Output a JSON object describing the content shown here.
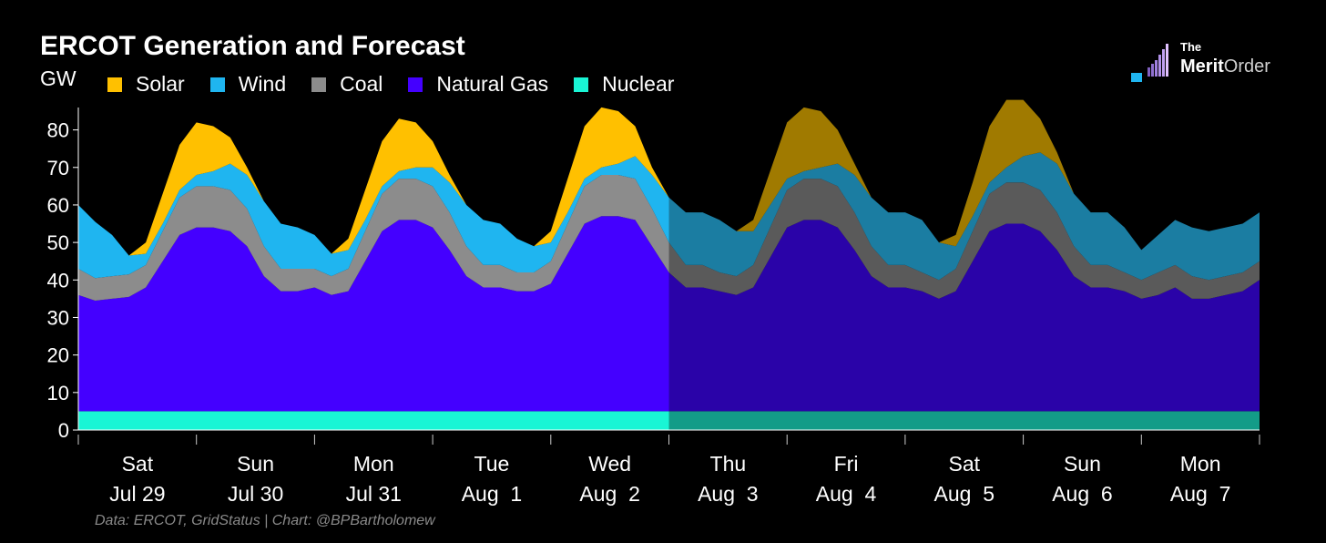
{
  "title": "ERCOT Generation and Forecast",
  "ylabel": "GW",
  "source": "Data: ERCOT, GridStatus | Chart: @BPBartholomew",
  "logo": {
    "line1": "The",
    "line2a": "Merit",
    "line2b": "Order"
  },
  "colors": {
    "solar": "#FFC000",
    "wind": "#1FB5F0",
    "coal": "#8C8C8C",
    "gas": "#4400FF",
    "nuclear": "#19F5D5",
    "other": "#C8103C",
    "forecast_solar": "#A07A00",
    "forecast_wind": "#1B7DA2",
    "forecast_coal": "#5A5A5A",
    "forecast_gas": "#2A03A8",
    "forecast_nuclear": "#139C88",
    "forecast_overlay": "#444444",
    "background": "#000000"
  },
  "legend": [
    {
      "label": "Solar",
      "color": "#FFC000"
    },
    {
      "label": "Wind",
      "color": "#1FB5F0"
    },
    {
      "label": "Coal",
      "color": "#8C8C8C"
    },
    {
      "label": "Natural Gas",
      "color": "#4400FF"
    },
    {
      "label": "Nuclear",
      "color": "#19F5D5"
    }
  ],
  "chart_data": {
    "type": "area",
    "stacked": true,
    "ylim": [
      0,
      85
    ],
    "yticks": [
      0,
      10,
      20,
      30,
      40,
      50,
      60,
      70,
      80
    ],
    "x_unit": "days from Sat Jul 29 00:00",
    "xlim": [
      0,
      10
    ],
    "forecast_start": 5,
    "day_labels": [
      {
        "day": "Sat",
        "date": "Jul 29"
      },
      {
        "day": "Sun",
        "date": "Jul 30"
      },
      {
        "day": "Mon",
        "date": "Jul 31"
      },
      {
        "day": "Tue",
        "date": "Aug  1"
      },
      {
        "day": "Wed",
        "date": "Aug  2"
      },
      {
        "day": "Thu",
        "date": "Aug  3"
      },
      {
        "day": "Fri",
        "date": "Aug  4"
      },
      {
        "day": "Sat",
        "date": "Aug  5"
      },
      {
        "day": "Sun",
        "date": "Aug  6"
      },
      {
        "day": "Mon",
        "date": "Aug  7"
      }
    ],
    "series": [
      {
        "name": "Nuclear",
        "color": "#19F5D5",
        "values": [
          5,
          5,
          5,
          5,
          5,
          5,
          5,
          5,
          5,
          5,
          5,
          5,
          5,
          5,
          5,
          5,
          5,
          5,
          5,
          5,
          5,
          5,
          5,
          5,
          5,
          5,
          5,
          5,
          5,
          5,
          5,
          5,
          5,
          5,
          5,
          5,
          5,
          5,
          5,
          5,
          5,
          5,
          5,
          5,
          5,
          5,
          5,
          5,
          5,
          5,
          5,
          5,
          5,
          5,
          5,
          5,
          5,
          5,
          5,
          5,
          5,
          5,
          5,
          5,
          5,
          5,
          5,
          5,
          5,
          5,
          5
        ]
      },
      {
        "name": "Natural Gas",
        "color": "#4400FF",
        "values": [
          31,
          29.5,
          30,
          30.5,
          33,
          40,
          47,
          49,
          49,
          48,
          44,
          36,
          32,
          32,
          33,
          31,
          32,
          40,
          48,
          51,
          51,
          49,
          43,
          36,
          33,
          33,
          32,
          32,
          34,
          42,
          50,
          52,
          52,
          51,
          44,
          37,
          33,
          33,
          32,
          31,
          33,
          41,
          49,
          51,
          51,
          49,
          43,
          36,
          33,
          33,
          32,
          30,
          32,
          40,
          48,
          50,
          50,
          48,
          43,
          36,
          33,
          33,
          32,
          30,
          31,
          33,
          30,
          30,
          31,
          32,
          35
        ]
      },
      {
        "name": "Coal",
        "color": "#8C8C8C",
        "values": [
          7,
          6,
          6,
          6,
          6,
          8,
          10,
          11,
          11,
          11,
          10,
          8,
          6,
          6,
          5,
          5,
          6,
          8,
          10,
          11,
          11,
          11,
          10,
          8,
          6,
          6,
          5,
          5,
          6,
          8,
          10,
          11,
          11,
          11,
          10,
          8,
          6,
          6,
          5,
          5,
          6,
          8,
          10,
          11,
          11,
          11,
          10,
          8,
          6,
          6,
          5,
          5,
          6,
          8,
          10,
          11,
          11,
          11,
          10,
          8,
          6,
          6,
          5,
          5,
          6,
          6,
          6,
          5,
          5,
          5,
          5
        ]
      },
      {
        "name": "Wind",
        "color": "#1FB5F0",
        "values": [
          17,
          15,
          11,
          5,
          3,
          2,
          2,
          3,
          4,
          7,
          9,
          12,
          12,
          11,
          9,
          6,
          5,
          3,
          2,
          2,
          3,
          5,
          8,
          11,
          12,
          11,
          9,
          7,
          5,
          3,
          2,
          2,
          3,
          6,
          9,
          12,
          14,
          14,
          14,
          12,
          9,
          6,
          3,
          2,
          3,
          6,
          10,
          13,
          14,
          14,
          14,
          10,
          6,
          4,
          3,
          4,
          7,
          10,
          13,
          14,
          14,
          14,
          12,
          8,
          10,
          12,
          13,
          13,
          13,
          13,
          13
        ]
      },
      {
        "name": "Solar",
        "color": "#FFC000",
        "values": [
          0,
          0,
          0,
          0,
          3,
          8,
          12,
          14,
          12,
          7,
          2,
          0,
          0,
          0,
          0,
          0,
          3,
          8,
          12,
          14,
          12,
          7,
          2,
          0,
          0,
          0,
          0,
          0,
          3,
          9,
          14,
          16,
          14,
          8,
          2,
          0,
          0,
          0,
          0,
          0,
          3,
          9,
          15,
          17,
          15,
          9,
          3,
          0,
          0,
          0,
          0,
          0,
          3,
          9,
          15,
          18,
          15,
          9,
          3,
          0,
          0,
          0,
          0,
          0,
          0,
          0,
          0,
          0,
          0,
          0,
          0
        ]
      }
    ]
  }
}
